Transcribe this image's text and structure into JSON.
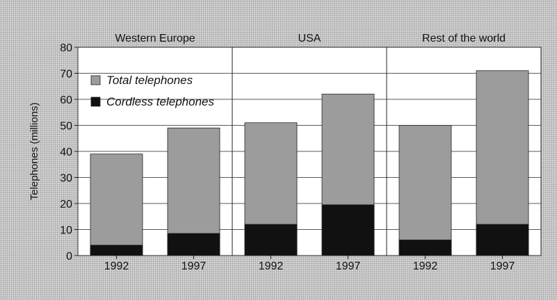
{
  "chart_data": {
    "type": "bar",
    "stacked": true,
    "groups": [
      {
        "label": "Western Europe",
        "categories": [
          "1992",
          "1997"
        ]
      },
      {
        "label": "USA",
        "categories": [
          "1992",
          "1997"
        ]
      },
      {
        "label": "Rest of the world",
        "categories": [
          "1992",
          "1997"
        ]
      }
    ],
    "series": [
      {
        "name": "Total telephones",
        "values": [
          39,
          49,
          51,
          62,
          50,
          71
        ],
        "color": "#9c9c9c"
      },
      {
        "name": "Cordless telephones",
        "values": [
          4,
          8.5,
          12,
          19.5,
          6,
          12
        ],
        "color": "#111111"
      }
    ],
    "ylabel": "Telephones (millions)",
    "ylim": [
      0,
      80
    ],
    "yticks": [
      0,
      10,
      20,
      30,
      40,
      50,
      60,
      70,
      80
    ],
    "grid": true,
    "legend": "upper-left"
  }
}
